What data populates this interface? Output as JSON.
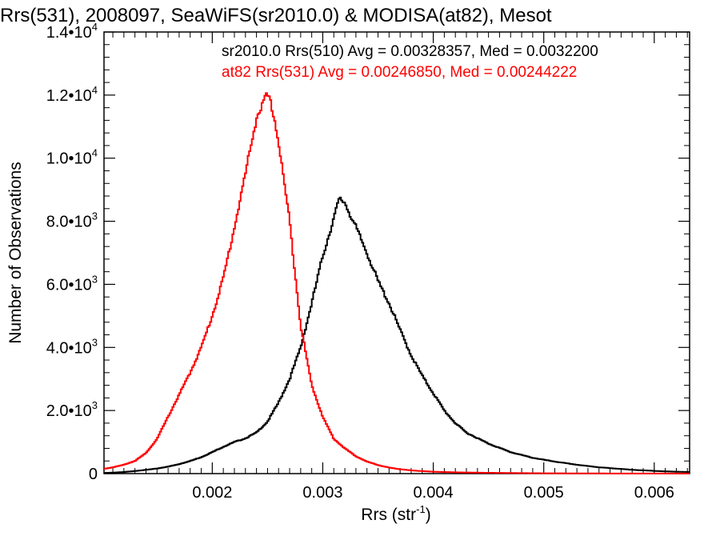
{
  "chart_data": {
    "type": "line",
    "title": "Rrs(531), 2008097, SeaWiFS(sr2010.0) & MODISA(at82), Mesot",
    "xlabel_main": "Rrs (str",
    "xlabel_sup": "-1",
    "xlabel_end": ")",
    "ylabel": "Number of Observations",
    "xlim": [
      0.00102,
      0.00632
    ],
    "ylim": [
      0,
      14000
    ],
    "grid": false,
    "legend_position": "top-right",
    "x_ticks": [
      {
        "value": 0.002,
        "label": "0.002"
      },
      {
        "value": 0.003,
        "label": "0.003"
      },
      {
        "value": 0.004,
        "label": "0.004"
      },
      {
        "value": 0.005,
        "label": "0.005"
      },
      {
        "value": 0.006,
        "label": "0.006"
      }
    ],
    "y_ticks": [
      {
        "value": 0,
        "mant": "0",
        "exp": ""
      },
      {
        "value": 2000,
        "mant": "2.0•10",
        "exp": "3"
      },
      {
        "value": 4000,
        "mant": "4.0•10",
        "exp": "3"
      },
      {
        "value": 6000,
        "mant": "6.0•10",
        "exp": "3"
      },
      {
        "value": 8000,
        "mant": "8.0•10",
        "exp": "3"
      },
      {
        "value": 10000,
        "mant": "1.0•10",
        "exp": "4"
      },
      {
        "value": 12000,
        "mant": "1.2•10",
        "exp": "4"
      },
      {
        "value": 14000,
        "mant": "1.4•10",
        "exp": "4"
      }
    ],
    "series": [
      {
        "label": "sr2010.0 Rrs(510) Avg = 0.00328357, Med = 0.0032200",
        "color": "#000000",
        "x": [
          0.00102,
          0.0011,
          0.0012,
          0.0013,
          0.0014,
          0.0015,
          0.0016,
          0.0017,
          0.0018,
          0.0019,
          0.002,
          0.0021,
          0.0022,
          0.0023,
          0.0024,
          0.0025,
          0.0026,
          0.0027,
          0.0028,
          0.0029,
          0.003,
          0.0031,
          0.00315,
          0.0032,
          0.0033,
          0.0034,
          0.0035,
          0.0036,
          0.0037,
          0.0038,
          0.0039,
          0.004,
          0.0041,
          0.0042,
          0.0043,
          0.0045,
          0.0047,
          0.0049,
          0.0051,
          0.0053,
          0.0055,
          0.0058,
          0.0061,
          0.00632
        ],
        "y": [
          20,
          30,
          50,
          80,
          120,
          160,
          220,
          300,
          400,
          520,
          680,
          850,
          1000,
          1120,
          1300,
          1650,
          2250,
          3000,
          4000,
          5400,
          6900,
          8100,
          8700,
          8600,
          7800,
          7000,
          6100,
          5400,
          4550,
          3750,
          3100,
          2550,
          2000,
          1600,
          1300,
          950,
          680,
          500,
          380,
          280,
          200,
          120,
          70,
          50
        ]
      },
      {
        "label": "at82 Rrs(531) Avg = 0.00246850, Med = 0.00244222",
        "color": "#ff0000",
        "x": [
          0.00102,
          0.0011,
          0.0012,
          0.0013,
          0.0014,
          0.0015,
          0.0016,
          0.0017,
          0.0018,
          0.0019,
          0.002,
          0.0021,
          0.0022,
          0.0023,
          0.0024,
          0.0025,
          0.00255,
          0.0026,
          0.0027,
          0.0028,
          0.0029,
          0.003,
          0.0031,
          0.0032,
          0.0033,
          0.0034,
          0.0035,
          0.0036,
          0.0037,
          0.0038,
          0.004,
          0.0042,
          0.0045,
          0.005,
          0.0055,
          0.006,
          0.00632
        ],
        "y": [
          150,
          200,
          280,
          400,
          650,
          1100,
          1800,
          2500,
          3200,
          4000,
          5000,
          6200,
          7800,
          9500,
          11300,
          12000,
          11500,
          10500,
          8000,
          4700,
          2800,
          1800,
          1100,
          800,
          550,
          380,
          270,
          190,
          140,
          100,
          60,
          40,
          25,
          10,
          5,
          3,
          2
        ]
      }
    ]
  }
}
